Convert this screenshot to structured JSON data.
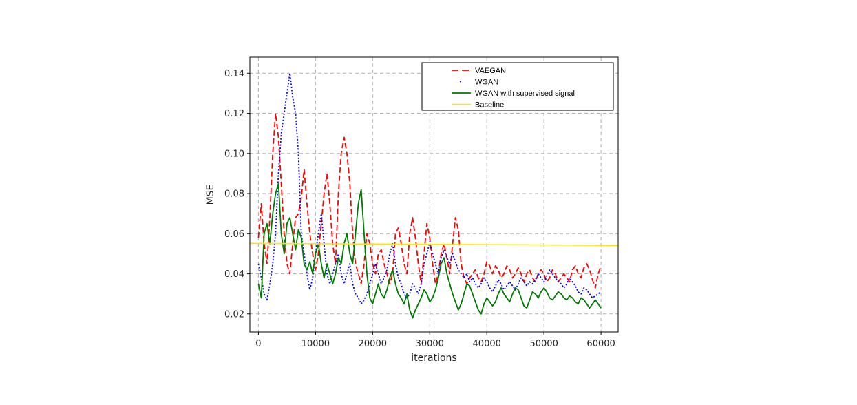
{
  "chart_data": {
    "type": "line",
    "xlabel": "iterations",
    "ylabel": "MSE",
    "xlim": [
      -1500,
      63000
    ],
    "ylim": [
      0.011,
      0.148
    ],
    "x_ticks": [
      0,
      10000,
      20000,
      30000,
      40000,
      50000,
      60000
    ],
    "y_ticks": [
      0.02,
      0.04,
      0.06,
      0.08,
      0.1,
      0.12,
      0.14
    ],
    "x_tick_labels": [
      "0",
      "10000",
      "20000",
      "30000",
      "40000",
      "50000",
      "60000"
    ],
    "y_tick_labels": [
      "0.02",
      "0.04",
      "0.06",
      "0.08",
      "0.10",
      "0.12",
      "0.14"
    ],
    "grid": true,
    "legend_position": "top-right",
    "series": [
      {
        "name": "VAEGAN",
        "color": "#ff0000",
        "style": "dashed",
        "x": [
          0,
          500,
          1000,
          1500,
          2000,
          2500,
          3000,
          3500,
          4000,
          4500,
          5000,
          5500,
          6000,
          6500,
          7000,
          7500,
          8000,
          8500,
          9000,
          9500,
          10000,
          10500,
          11000,
          11500,
          12000,
          12500,
          13000,
          13500,
          14000,
          14500,
          15000,
          15500,
          16000,
          16500,
          17000,
          17500,
          18000,
          18500,
          19000,
          19500,
          20000,
          20500,
          21000,
          21500,
          22000,
          22500,
          23000,
          23500,
          24000,
          24500,
          25000,
          25500,
          26000,
          26500,
          27000,
          27500,
          28000,
          28500,
          29000,
          29500,
          30000,
          30500,
          31000,
          31500,
          32000,
          32500,
          33000,
          33500,
          34000,
          34500,
          35000,
          35500,
          36000,
          36500,
          37000,
          37500,
          38000,
          38500,
          39000,
          39500,
          40000,
          40500,
          41000,
          41500,
          42000,
          42500,
          43000,
          43500,
          44000,
          44500,
          45000,
          45500,
          46000,
          46500,
          47000,
          47500,
          48000,
          48500,
          49000,
          49500,
          50000,
          50500,
          51000,
          51500,
          52000,
          52500,
          53000,
          53500,
          54000,
          54500,
          55000,
          55500,
          56000,
          56500,
          57000,
          57500,
          58000,
          58500,
          59000,
          59500,
          60000
        ],
        "y": [
          0.058,
          0.075,
          0.055,
          0.045,
          0.068,
          0.1,
          0.12,
          0.108,
          0.085,
          0.06,
          0.045,
          0.04,
          0.055,
          0.068,
          0.07,
          0.078,
          0.092,
          0.075,
          0.06,
          0.05,
          0.042,
          0.05,
          0.065,
          0.08,
          0.09,
          0.075,
          0.055,
          0.045,
          0.08,
          0.1,
          0.108,
          0.1,
          0.085,
          0.06,
          0.045,
          0.04,
          0.035,
          0.045,
          0.06,
          0.055,
          0.045,
          0.04,
          0.05,
          0.052,
          0.045,
          0.04,
          0.035,
          0.04,
          0.06,
          0.063,
          0.055,
          0.045,
          0.04,
          0.06,
          0.068,
          0.058,
          0.045,
          0.035,
          0.05,
          0.065,
          0.058,
          0.045,
          0.035,
          0.04,
          0.05,
          0.055,
          0.048,
          0.04,
          0.055,
          0.068,
          0.062,
          0.045,
          0.038,
          0.035,
          0.038,
          0.04,
          0.042,
          0.038,
          0.036,
          0.04,
          0.046,
          0.044,
          0.04,
          0.044,
          0.042,
          0.038,
          0.04,
          0.044,
          0.042,
          0.038,
          0.04,
          0.043,
          0.04,
          0.036,
          0.04,
          0.042,
          0.038,
          0.036,
          0.04,
          0.042,
          0.04,
          0.036,
          0.038,
          0.042,
          0.04,
          0.036,
          0.038,
          0.04,
          0.038,
          0.036,
          0.042,
          0.044,
          0.04,
          0.038,
          0.043,
          0.045,
          0.042,
          0.037,
          0.033,
          0.04,
          0.044
        ]
      },
      {
        "name": "WGAN",
        "color": "#0000ff",
        "style": "dotted",
        "x": [
          0,
          500,
          1000,
          1500,
          2000,
          2500,
          3000,
          3500,
          4000,
          4500,
          5000,
          5500,
          6000,
          6500,
          7000,
          7500,
          8000,
          8500,
          9000,
          9500,
          10000,
          10500,
          11000,
          11500,
          12000,
          12500,
          13000,
          13500,
          14000,
          14500,
          15000,
          15500,
          16000,
          16500,
          17000,
          17500,
          18000,
          18500,
          19000,
          19500,
          20000,
          20500,
          21000,
          21500,
          22000,
          22500,
          23000,
          23500,
          24000,
          24500,
          25000,
          25500,
          26000,
          26500,
          27000,
          27500,
          28000,
          28500,
          29000,
          29500,
          30000,
          30500,
          31000,
          31500,
          32000,
          32500,
          33000,
          33500,
          34000,
          34500,
          35000,
          35500,
          36000,
          36500,
          37000,
          37500,
          38000,
          38500,
          39000,
          39500,
          40000,
          40500,
          41000,
          41500,
          42000,
          42500,
          43000,
          43500,
          44000,
          44500,
          45000,
          45500,
          46000,
          46500,
          47000,
          47500,
          48000,
          48500,
          49000,
          49500,
          50000,
          50500,
          51000,
          51500,
          52000,
          52500,
          53000,
          53500,
          54000,
          54500,
          55000,
          55500,
          56000,
          56500,
          57000,
          57500,
          58000,
          58500,
          59000,
          59500,
          60000
        ],
        "y": [
          0.045,
          0.038,
          0.03,
          0.027,
          0.035,
          0.045,
          0.06,
          0.09,
          0.11,
          0.12,
          0.13,
          0.14,
          0.128,
          0.12,
          0.1,
          0.06,
          0.05,
          0.04,
          0.032,
          0.038,
          0.05,
          0.06,
          0.07,
          0.055,
          0.04,
          0.035,
          0.04,
          0.045,
          0.05,
          0.04,
          0.035,
          0.04,
          0.045,
          0.035,
          0.03,
          0.028,
          0.025,
          0.027,
          0.03,
          0.035,
          0.04,
          0.045,
          0.04,
          0.035,
          0.038,
          0.042,
          0.05,
          0.055,
          0.045,
          0.038,
          0.035,
          0.03,
          0.028,
          0.03,
          0.035,
          0.033,
          0.03,
          0.035,
          0.045,
          0.05,
          0.056,
          0.05,
          0.045,
          0.04,
          0.048,
          0.052,
          0.048,
          0.045,
          0.05,
          0.046,
          0.042,
          0.04,
          0.038,
          0.04,
          0.036,
          0.038,
          0.035,
          0.033,
          0.035,
          0.038,
          0.036,
          0.033,
          0.031,
          0.034,
          0.037,
          0.035,
          0.032,
          0.034,
          0.036,
          0.034,
          0.032,
          0.035,
          0.038,
          0.036,
          0.034,
          0.036,
          0.035,
          0.037,
          0.04,
          0.038,
          0.036,
          0.039,
          0.042,
          0.04,
          0.038,
          0.036,
          0.035,
          0.033,
          0.035,
          0.038,
          0.036,
          0.034,
          0.031,
          0.03,
          0.033,
          0.032,
          0.03,
          0.028,
          0.029,
          0.03,
          0.031
        ]
      },
      {
        "name": "WGAN with supervised signal",
        "color": "#007a00",
        "style": "solid",
        "x": [
          0,
          500,
          1000,
          1500,
          2000,
          2500,
          3000,
          3500,
          4000,
          4500,
          5000,
          5500,
          6000,
          6500,
          7000,
          7500,
          8000,
          8500,
          9000,
          9500,
          10000,
          10500,
          11000,
          11500,
          12000,
          12500,
          13000,
          13500,
          14000,
          14500,
          15000,
          15500,
          16000,
          16500,
          17000,
          17500,
          18000,
          18500,
          19000,
          19500,
          20000,
          20500,
          21000,
          21500,
          22000,
          22500,
          23000,
          23500,
          24000,
          24500,
          25000,
          25500,
          26000,
          26500,
          27000,
          27500,
          28000,
          28500,
          29000,
          29500,
          30000,
          30500,
          31000,
          31500,
          32000,
          32500,
          33000,
          33500,
          34000,
          34500,
          35000,
          35500,
          36000,
          36500,
          37000,
          37500,
          38000,
          38500,
          39000,
          39500,
          40000,
          40500,
          41000,
          41500,
          42000,
          42500,
          43000,
          43500,
          44000,
          44500,
          45000,
          45500,
          46000,
          46500,
          47000,
          47500,
          48000,
          48500,
          49000,
          49500,
          50000,
          50500,
          51000,
          51500,
          52000,
          52500,
          53000,
          53500,
          54000,
          54500,
          55000,
          55500,
          56000,
          56500,
          57000,
          57500,
          58000,
          58500,
          59000,
          59500,
          60000
        ],
        "y": [
          0.035,
          0.028,
          0.06,
          0.065,
          0.055,
          0.07,
          0.08,
          0.085,
          0.06,
          0.05,
          0.065,
          0.068,
          0.06,
          0.052,
          0.062,
          0.058,
          0.045,
          0.042,
          0.046,
          0.04,
          0.05,
          0.055,
          0.045,
          0.038,
          0.045,
          0.04,
          0.035,
          0.04,
          0.048,
          0.045,
          0.055,
          0.06,
          0.05,
          0.045,
          0.06,
          0.075,
          0.082,
          0.06,
          0.04,
          0.028,
          0.025,
          0.03,
          0.035,
          0.03,
          0.028,
          0.032,
          0.038,
          0.042,
          0.035,
          0.03,
          0.028,
          0.025,
          0.03,
          0.022,
          0.018,
          0.022,
          0.025,
          0.028,
          0.032,
          0.03,
          0.026,
          0.028,
          0.032,
          0.038,
          0.045,
          0.048,
          0.04,
          0.035,
          0.03,
          0.026,
          0.022,
          0.025,
          0.03,
          0.035,
          0.034,
          0.03,
          0.026,
          0.022,
          0.02,
          0.025,
          0.028,
          0.026,
          0.024,
          0.026,
          0.03,
          0.033,
          0.03,
          0.028,
          0.026,
          0.03,
          0.033,
          0.032,
          0.028,
          0.024,
          0.023,
          0.027,
          0.031,
          0.03,
          0.028,
          0.031,
          0.033,
          0.031,
          0.028,
          0.027,
          0.029,
          0.031,
          0.03,
          0.028,
          0.027,
          0.029,
          0.028,
          0.026,
          0.025,
          0.028,
          0.027,
          0.025,
          0.023,
          0.025,
          0.027,
          0.025,
          0.023
        ]
      },
      {
        "name": "Baseline",
        "color": "#ffe600",
        "style": "solid",
        "x": [
          -1500,
          63000
        ],
        "y": [
          0.0552,
          0.0542
        ]
      }
    ]
  }
}
